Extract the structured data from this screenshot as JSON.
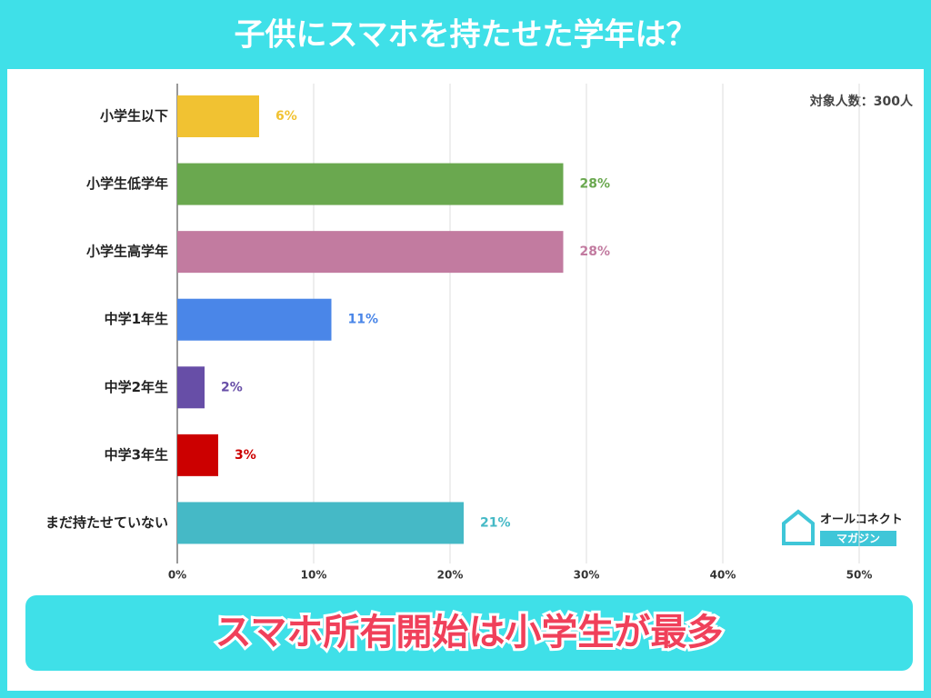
{
  "chart_data": {
    "type": "hbar",
    "title": "子供にスマホを持たせた学年は？",
    "annotation": "対象人数：300人",
    "categories": [
      "小学生以下",
      "小学生低学年",
      "小学生高学年",
      "中学1年生",
      "中学2年生",
      "中学3年生",
      "まだ持たせていない"
    ],
    "values": [
      6,
      28.3,
      28.3,
      11.3,
      2,
      3,
      21
    ],
    "value_labels": [
      "6%",
      "28%",
      "28%",
      "11%",
      "2%",
      "3%",
      "21%"
    ],
    "colors": [
      "#f1c232",
      "#6aa84f",
      "#c27ba0",
      "#4a86e8",
      "#674ea7",
      "#cc0000",
      "#45b9c6"
    ],
    "xlim": [
      0,
      50
    ],
    "xticks": [
      {
        "value": 0,
        "label": "0%"
      },
      {
        "value": 10,
        "label": "10%"
      },
      {
        "value": 20,
        "label": "20%"
      },
      {
        "value": 30,
        "label": "30%"
      },
      {
        "value": 40,
        "label": "40%"
      },
      {
        "value": 50,
        "label": "50%"
      }
    ],
    "grid": true
  },
  "banner": "スマホ所有開始は小学生が最多",
  "logo": {
    "name": "オールコネクト",
    "sub": "マガジン"
  }
}
